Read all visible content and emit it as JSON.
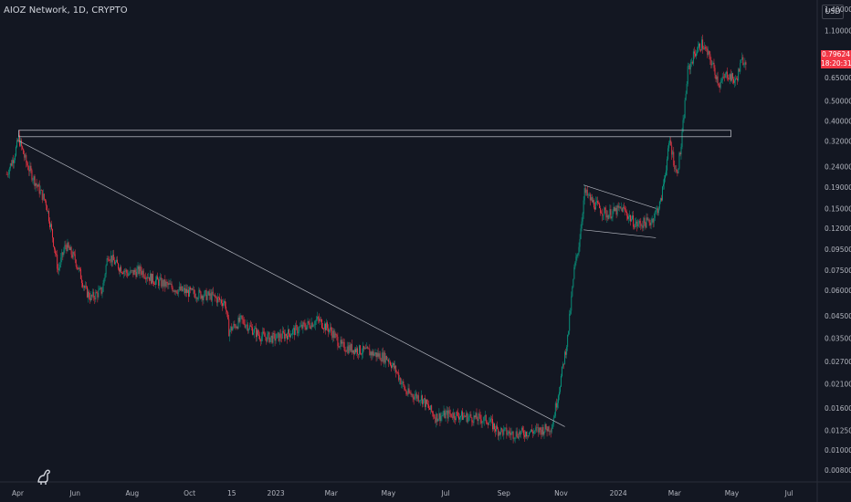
{
  "header": {
    "title": "AIOZ Network, 1D, CRYPTO"
  },
  "currency_button": "USD",
  "price_tag": {
    "price": "0.79624",
    "countdown": "18:20:31",
    "color": "#f23645"
  },
  "colors": {
    "up": "#089981",
    "down": "#f23645",
    "background": "#131722",
    "axis_text": "#b2b5be",
    "drawing": "#b2b5be"
  },
  "logo_icon": "tradingview-dinosaur-icon",
  "chart_data": {
    "type": "candlestick",
    "title": "AIOZ Network, 1D, CRYPTO",
    "xlabel": "",
    "ylabel": "",
    "scale": "log",
    "grid": false,
    "ylim": [
      0.007,
      1.55
    ],
    "xlim": [
      "2022-03-13",
      "2024-07-31"
    ],
    "y_ticks": [
      "1.40000",
      "1.10000",
      "0.85000",
      "0.65000",
      "0.50000",
      "0.40000",
      "0.32000",
      "0.24000",
      "0.19000",
      "0.15000",
      "0.12000",
      "0.09500",
      "0.07500",
      "0.06000",
      "0.04500",
      "0.03500",
      "0.02700",
      "0.02100",
      "0.01600",
      "0.01250",
      "0.01000",
      "0.00800"
    ],
    "x_ticks": [
      {
        "label": "Apr",
        "date": "2022-04-01"
      },
      {
        "label": "Jun",
        "date": "2022-06-01"
      },
      {
        "label": "Aug",
        "date": "2022-08-01"
      },
      {
        "label": "Oct",
        "date": "2022-10-01"
      },
      {
        "label": "15",
        "date": "2022-11-15"
      },
      {
        "label": "2023",
        "date": "2023-01-01"
      },
      {
        "label": "Mar",
        "date": "2023-03-01"
      },
      {
        "label": "May",
        "date": "2023-05-01"
      },
      {
        "label": "Jul",
        "date": "2023-07-01"
      },
      {
        "label": "Sep",
        "date": "2023-09-01"
      },
      {
        "label": "Nov",
        "date": "2023-11-01"
      },
      {
        "label": "2024",
        "date": "2024-01-01"
      },
      {
        "label": "Mar",
        "date": "2024-03-01"
      },
      {
        "label": "May",
        "date": "2024-05-01"
      },
      {
        "label": "Jul",
        "date": "2024-07-01"
      }
    ],
    "price_path": [
      [
        "2022-03-20",
        0.22
      ],
      [
        "2022-03-28",
        0.27
      ],
      [
        "2022-04-02",
        0.33
      ],
      [
        "2022-04-10",
        0.25
      ],
      [
        "2022-04-20",
        0.2
      ],
      [
        "2022-05-01",
        0.16
      ],
      [
        "2022-05-08",
        0.11
      ],
      [
        "2022-05-14",
        0.075
      ],
      [
        "2022-05-22",
        0.1
      ],
      [
        "2022-06-01",
        0.085
      ],
      [
        "2022-06-12",
        0.06
      ],
      [
        "2022-06-18",
        0.055
      ],
      [
        "2022-06-30",
        0.06
      ],
      [
        "2022-07-06",
        0.09
      ],
      [
        "2022-07-15",
        0.08
      ],
      [
        "2022-07-28",
        0.072
      ],
      [
        "2022-08-10",
        0.075
      ],
      [
        "2022-08-22",
        0.068
      ],
      [
        "2022-09-05",
        0.064
      ],
      [
        "2022-09-20",
        0.06
      ],
      [
        "2022-10-05",
        0.058
      ],
      [
        "2022-10-25",
        0.056
      ],
      [
        "2022-11-08",
        0.052
      ],
      [
        "2022-11-12",
        0.038
      ],
      [
        "2022-11-25",
        0.043
      ],
      [
        "2022-12-15",
        0.036
      ],
      [
        "2022-12-30",
        0.035
      ],
      [
        "2023-01-15",
        0.037
      ],
      [
        "2023-02-05",
        0.041
      ],
      [
        "2023-02-15",
        0.043
      ],
      [
        "2023-03-01",
        0.038
      ],
      [
        "2023-03-12",
        0.032
      ],
      [
        "2023-03-25",
        0.031
      ],
      [
        "2023-04-10",
        0.03
      ],
      [
        "2023-04-30",
        0.028
      ],
      [
        "2023-05-10",
        0.024
      ],
      [
        "2023-05-20",
        0.019
      ],
      [
        "2023-06-05",
        0.018
      ],
      [
        "2023-06-20",
        0.0145
      ],
      [
        "2023-07-05",
        0.015
      ],
      [
        "2023-07-25",
        0.0145
      ],
      [
        "2023-08-15",
        0.014
      ],
      [
        "2023-08-25",
        0.0125
      ],
      [
        "2023-09-10",
        0.012
      ],
      [
        "2023-09-25",
        0.0122
      ],
      [
        "2023-10-10",
        0.0125
      ],
      [
        "2023-10-22",
        0.013
      ],
      [
        "2023-10-30",
        0.02
      ],
      [
        "2023-11-08",
        0.035
      ],
      [
        "2023-11-15",
        0.075
      ],
      [
        "2023-11-20",
        0.1
      ],
      [
        "2023-11-26",
        0.18
      ],
      [
        "2023-12-05",
        0.16
      ],
      [
        "2023-12-20",
        0.14
      ],
      [
        "2024-01-05",
        0.15
      ],
      [
        "2024-01-20",
        0.125
      ],
      [
        "2024-02-05",
        0.13
      ],
      [
        "2024-02-15",
        0.16
      ],
      [
        "2024-02-25",
        0.32
      ],
      [
        "2024-03-03",
        0.22
      ],
      [
        "2024-03-08",
        0.3
      ],
      [
        "2024-03-15",
        0.7
      ],
      [
        "2024-03-22",
        0.85
      ],
      [
        "2024-03-30",
        0.95
      ],
      [
        "2024-04-08",
        0.8
      ],
      [
        "2024-04-18",
        0.6
      ],
      [
        "2024-04-26",
        0.68
      ],
      [
        "2024-05-05",
        0.62
      ],
      [
        "2024-05-12",
        0.79
      ],
      [
        "2024-05-16",
        0.796
      ]
    ],
    "drawings": [
      {
        "type": "rectangle",
        "start": [
          "2022-04-02",
          0.36
        ],
        "end": [
          "2024-04-30",
          0.335
        ]
      },
      {
        "type": "trendline",
        "start": [
          "2022-04-02",
          0.32
        ],
        "end": [
          "2023-11-05",
          0.013
        ]
      },
      {
        "type": "trendline",
        "start": [
          "2023-11-25",
          0.195
        ],
        "end": [
          "2024-02-10",
          0.15
        ]
      },
      {
        "type": "trendline",
        "start": [
          "2023-11-25",
          0.118
        ],
        "end": [
          "2024-02-10",
          0.108
        ]
      }
    ]
  }
}
